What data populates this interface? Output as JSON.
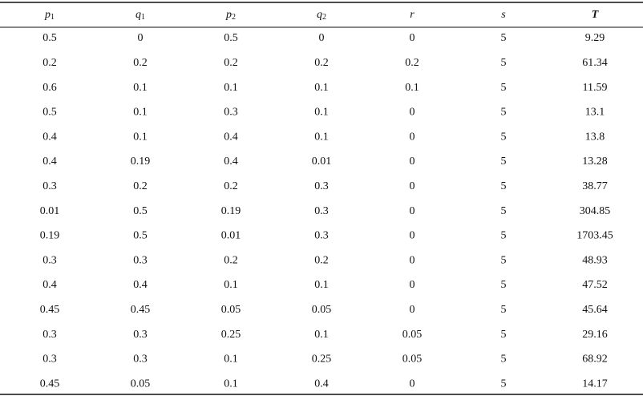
{
  "table": {
    "header": [
      {
        "text": "p",
        "sub": "1"
      },
      {
        "text": "q",
        "sub": "1"
      },
      {
        "text": "p",
        "sub": "2"
      },
      {
        "text": "q",
        "sub": "2"
      },
      {
        "text": "r"
      },
      {
        "text": "s"
      },
      {
        "text": "T"
      }
    ],
    "rows": [
      [
        "0.5",
        "0",
        "0.5",
        "0",
        "0",
        "5",
        "9.29"
      ],
      [
        "0.2",
        "0.2",
        "0.2",
        "0.2",
        "0.2",
        "5",
        "61.34"
      ],
      [
        "0.6",
        "0.1",
        "0.1",
        "0.1",
        "0.1",
        "5",
        "11.59"
      ],
      [
        "0.5",
        "0.1",
        "0.3",
        "0.1",
        "0",
        "5",
        "13.1"
      ],
      [
        "0.4",
        "0.1",
        "0.4",
        "0.1",
        "0",
        "5",
        "13.8"
      ],
      [
        "0.4",
        "0.19",
        "0.4",
        "0.01",
        "0",
        "5",
        "13.28"
      ],
      [
        "0.3",
        "0.2",
        "0.2",
        "0.3",
        "0",
        "5",
        "38.77"
      ],
      [
        "0.01",
        "0.5",
        "0.19",
        "0.3",
        "0",
        "5",
        "304.85"
      ],
      [
        "0.19",
        "0.5",
        "0.01",
        "0.3",
        "0",
        "5",
        "1703.45"
      ],
      [
        "0.3",
        "0.3",
        "0.2",
        "0.2",
        "0",
        "5",
        "48.93"
      ],
      [
        "0.4",
        "0.4",
        "0.1",
        "0.1",
        "0",
        "5",
        "47.52"
      ],
      [
        "0.45",
        "0.45",
        "0.05",
        "0.05",
        "0",
        "5",
        "45.64"
      ],
      [
        "0.3",
        "0.3",
        "0.25",
        "0.1",
        "0.05",
        "5",
        "29.16"
      ],
      [
        "0.3",
        "0.3",
        "0.1",
        "0.25",
        "0.05",
        "5",
        "68.92"
      ],
      [
        "0.45",
        "0.05",
        "0.1",
        "0.4",
        "0",
        "5",
        "14.17"
      ]
    ]
  }
}
